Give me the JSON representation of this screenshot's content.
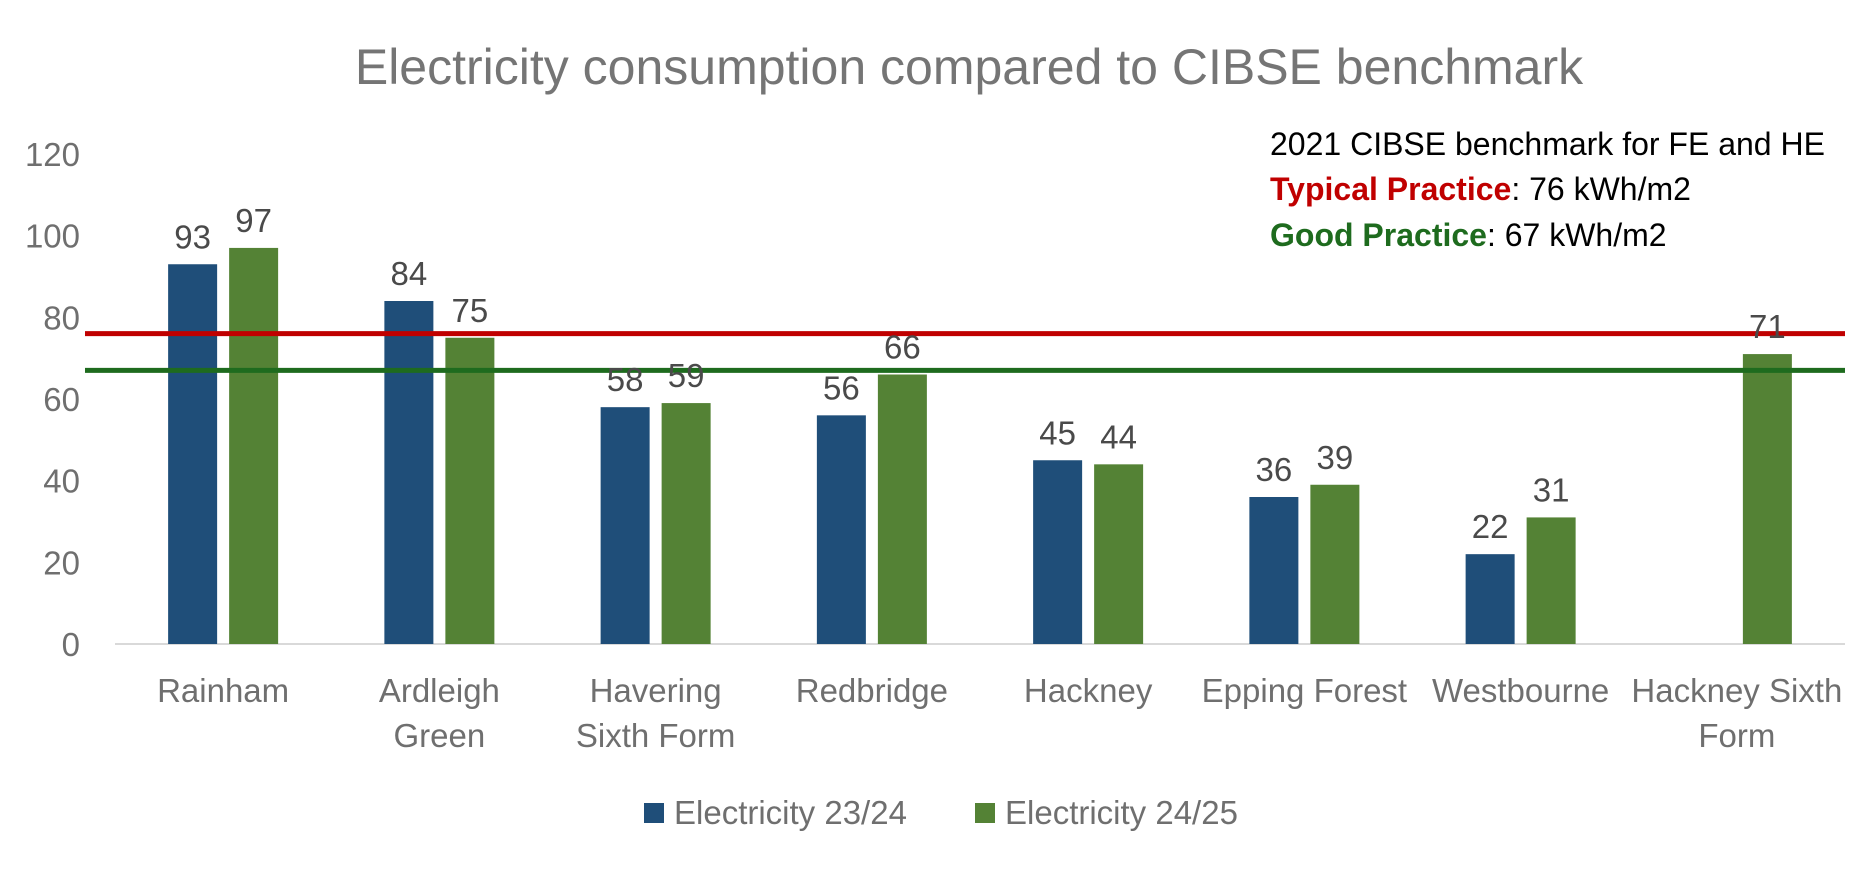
{
  "chart_data": {
    "type": "bar",
    "title": "Electricity consumption compared to CIBSE benchmark",
    "categories": [
      [
        "Rainham"
      ],
      [
        "Ardleigh",
        "Green"
      ],
      [
        "Havering",
        "Sixth Form"
      ],
      [
        "Redbridge"
      ],
      [
        "Hackney"
      ],
      [
        "Epping Forest"
      ],
      [
        "Westbourne"
      ],
      [
        "Hackney Sixth",
        "Form"
      ]
    ],
    "series": [
      {
        "name": "Electricity 23/24",
        "color": "#1f4e79",
        "values": [
          93,
          84,
          58,
          56,
          45,
          36,
          22,
          null
        ]
      },
      {
        "name": "Electricity 24/25",
        "color": "#548235",
        "values": [
          97,
          75,
          59,
          66,
          44,
          39,
          31,
          71
        ]
      }
    ],
    "ylim": [
      0,
      120
    ],
    "yticks": [
      0,
      20,
      40,
      60,
      80,
      100,
      120
    ],
    "xlabel": "",
    "ylabel": "",
    "legend_position": "bottom-center",
    "reference_lines": [
      {
        "name": "Typical Practice",
        "value": 76,
        "color": "#c00000"
      },
      {
        "name": "Good Practice",
        "value": 67,
        "color": "#1e6b1e"
      }
    ],
    "annotation": {
      "heading": "2021 CIBSE benchmark for FE and HE",
      "lines": [
        {
          "label": "Typical Practice",
          "text": ": 76 kWh/m2",
          "color": "#c00000"
        },
        {
          "label": "Good Practice",
          "text": ": 67 kWh/m2",
          "color": "#1e6b1e"
        }
      ]
    }
  }
}
